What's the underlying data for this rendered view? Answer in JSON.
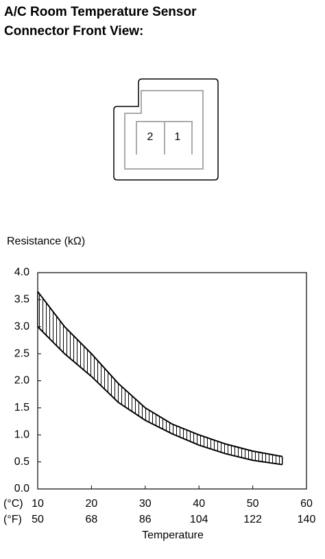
{
  "header": {
    "title_lines": [
      "A/C Room Temperature Sensor",
      "Connector Front View:"
    ]
  },
  "connector": {
    "pins": [
      "2",
      "1"
    ]
  },
  "chart_data": {
    "type": "band",
    "ylabel": "Resistance (kΩ)",
    "xlabel": "Temperature",
    "x_unit_label": "(°C)",
    "x2_unit_label": "(°F)",
    "x": [
      10,
      15,
      20,
      25,
      30,
      35,
      40,
      45,
      50,
      55.5
    ],
    "series": [
      {
        "values": [
          3.65,
          3.0,
          2.5,
          1.95,
          1.5,
          1.2,
          1.0,
          0.83,
          0.7,
          0.6
        ]
      },
      {
        "values": [
          3.0,
          2.5,
          2.08,
          1.6,
          1.27,
          1.02,
          0.81,
          0.65,
          0.53,
          0.45
        ]
      }
    ],
    "color": "#000000",
    "xlim": [
      10,
      60
    ],
    "xticks": [
      10,
      20,
      30,
      40,
      50,
      60
    ],
    "x2lim": [
      50,
      140
    ],
    "x2ticks": [
      50,
      68,
      86,
      104,
      122,
      140
    ],
    "ylim": [
      0,
      4
    ],
    "yticks": [
      {
        "value": 0,
        "label": "0.0"
      },
      {
        "value": 0.5,
        "label": "0.5"
      },
      {
        "value": 1,
        "label": "1.0"
      },
      {
        "value": 1.5,
        "label": "1.5"
      },
      {
        "value": 2,
        "label": "2.0"
      },
      {
        "value": 2.5,
        "label": "2.5"
      },
      {
        "value": 3,
        "label": "3.0"
      },
      {
        "value": 3.5,
        "label": "3.5"
      },
      {
        "value": 4,
        "label": "4.0"
      }
    ]
  }
}
